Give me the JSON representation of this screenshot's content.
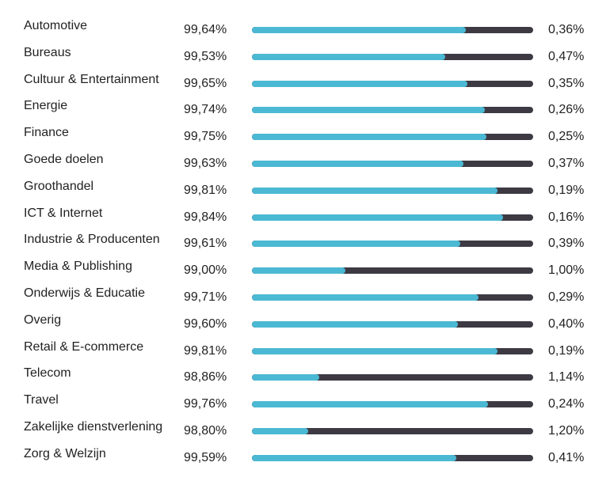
{
  "chart_data": {
    "type": "bar",
    "orientation": "horizontal",
    "colors": {
      "fill": "#4bb9d3",
      "track": "#3d3a44"
    },
    "title": "",
    "xlabel": "",
    "ylabel": "",
    "scale_min_pct": 98.5,
    "rows": [
      {
        "label": "Automotive",
        "left": "99,64%",
        "right": "0,36%",
        "value": 99.64
      },
      {
        "label": "Bureaus",
        "left": "99,53%",
        "right": "0,47%",
        "value": 99.53
      },
      {
        "label": "Cultuur & Entertainment",
        "left": "99,65%",
        "right": "0,35%",
        "value": 99.65
      },
      {
        "label": "Energie",
        "left": "99,74%",
        "right": "0,26%",
        "value": 99.74
      },
      {
        "label": "Finance",
        "left": "99,75%",
        "right": "0,25%",
        "value": 99.75
      },
      {
        "label": "Goede doelen",
        "left": "99,63%",
        "right": "0,37%",
        "value": 99.63
      },
      {
        "label": "Groothandel",
        "left": "99,81%",
        "right": "0,19%",
        "value": 99.81
      },
      {
        "label": "ICT & Internet",
        "left": "99,84%",
        "right": "0,16%",
        "value": 99.84
      },
      {
        "label": "Industrie & Producenten",
        "left": "99,61%",
        "right": "0,39%",
        "value": 99.61
      },
      {
        "label": "Media & Publishing",
        "left": "99,00%",
        "right": "1,00%",
        "value": 99.0
      },
      {
        "label": "Onderwijs & Educatie",
        "left": "99,71%",
        "right": "0,29%",
        "value": 99.71
      },
      {
        "label": "Overig",
        "left": "99,60%",
        "right": "0,40%",
        "value": 99.6
      },
      {
        "label": "Retail & E-commerce",
        "left": "99,81%",
        "right": "0,19%",
        "value": 99.81
      },
      {
        "label": "Telecom",
        "left": "98,86%",
        "right": "1,14%",
        "value": 98.86
      },
      {
        "label": "Travel",
        "left": "99,76%",
        "right": "0,24%",
        "value": 99.76
      },
      {
        "label": "Zakelijke dienstverlening",
        "left": "98,80%",
        "right": "1,20%",
        "value": 98.8
      },
      {
        "label": "Zorg & Welzijn",
        "left": "99,59%",
        "right": "0,41%",
        "value": 99.59
      }
    ]
  }
}
